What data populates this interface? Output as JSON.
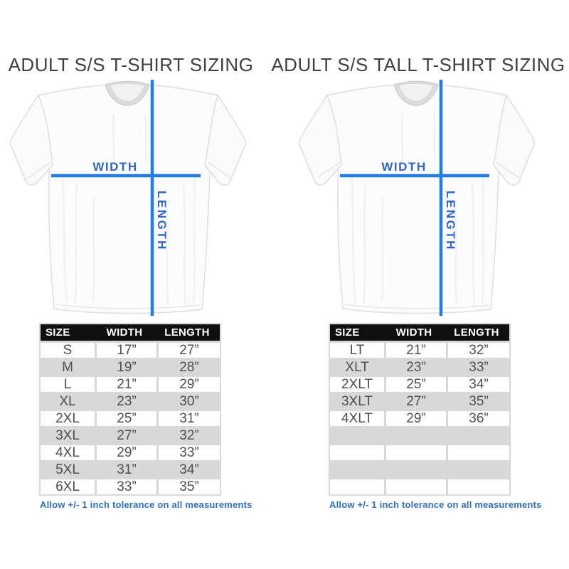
{
  "panels": [
    {
      "title": "ADULT S/S T-SHIRT SIZING",
      "shirt": {
        "width_label": "WIDTH",
        "length_label": "LENGTH"
      },
      "table": {
        "headers": [
          "SIZE",
          "WIDTH",
          "LENGTH"
        ],
        "rows": [
          [
            "S",
            "17”",
            "27”"
          ],
          [
            "M",
            "19”",
            "28”"
          ],
          [
            "L",
            "21”",
            "29”"
          ],
          [
            "XL",
            "23”",
            "30”"
          ],
          [
            "2XL",
            "25”",
            "31”"
          ],
          [
            "3XL",
            "27”",
            "32”"
          ],
          [
            "4XL",
            "29”",
            "33”"
          ],
          [
            "5XL",
            "31”",
            "34”"
          ],
          [
            "6XL",
            "33”",
            "35”"
          ]
        ],
        "empty_rows": 0
      },
      "footnote": "Allow +/- 1 inch tolerance on all measurements"
    },
    {
      "title": "ADULT S/S TALL T-SHIRT SIZING",
      "shirt": {
        "width_label": "WIDTH",
        "length_label": "LENGTH"
      },
      "table": {
        "headers": [
          "SIZE",
          "WIDTH",
          "LENGTH"
        ],
        "rows": [
          [
            "LT",
            "21”",
            "32”"
          ],
          [
            "XLT",
            "23”",
            "33”"
          ],
          [
            "2XLT",
            "25”",
            "34”"
          ],
          [
            "3XLT",
            "27”",
            "35”"
          ],
          [
            "4XLT",
            "29”",
            "36”"
          ]
        ],
        "empty_rows": 4
      },
      "footnote": "Allow +/- 1 inch tolerance on all measurements"
    }
  ],
  "colors": {
    "measurement_line": "#1f7de4",
    "measurement_label": "#2f66c6",
    "table_header_bg": "#101010",
    "table_header_text": "#ffffff",
    "table_alt_row": "#d8d8d8",
    "table_text": "#4f4f4f",
    "footnote_text": "#2f6fc0",
    "title_text": "#3e4043"
  },
  "chart_data": [
    {
      "type": "table",
      "title": "ADULT S/S T-SHIRT SIZING",
      "columns": [
        "SIZE",
        "WIDTH",
        "LENGTH"
      ],
      "rows": [
        [
          "S",
          "17”",
          "27”"
        ],
        [
          "M",
          "19”",
          "28”"
        ],
        [
          "L",
          "21”",
          "29”"
        ],
        [
          "XL",
          "23”",
          "30”"
        ],
        [
          "2XL",
          "25”",
          "31”"
        ],
        [
          "3XL",
          "27”",
          "32”"
        ],
        [
          "4XL",
          "29”",
          "33”"
        ],
        [
          "5XL",
          "31”",
          "34”"
        ],
        [
          "6XL",
          "33”",
          "35”"
        ]
      ],
      "note": "Allow +/- 1 inch tolerance on all measurements"
    },
    {
      "type": "table",
      "title": "ADULT S/S TALL T-SHIRT SIZING",
      "columns": [
        "SIZE",
        "WIDTH",
        "LENGTH"
      ],
      "rows": [
        [
          "LT",
          "21”",
          "32”"
        ],
        [
          "XLT",
          "23”",
          "33”"
        ],
        [
          "2XLT",
          "25”",
          "34”"
        ],
        [
          "3XLT",
          "27”",
          "35”"
        ],
        [
          "4XLT",
          "29”",
          "36”"
        ]
      ],
      "note": "Allow +/- 1 inch tolerance on all measurements"
    }
  ]
}
